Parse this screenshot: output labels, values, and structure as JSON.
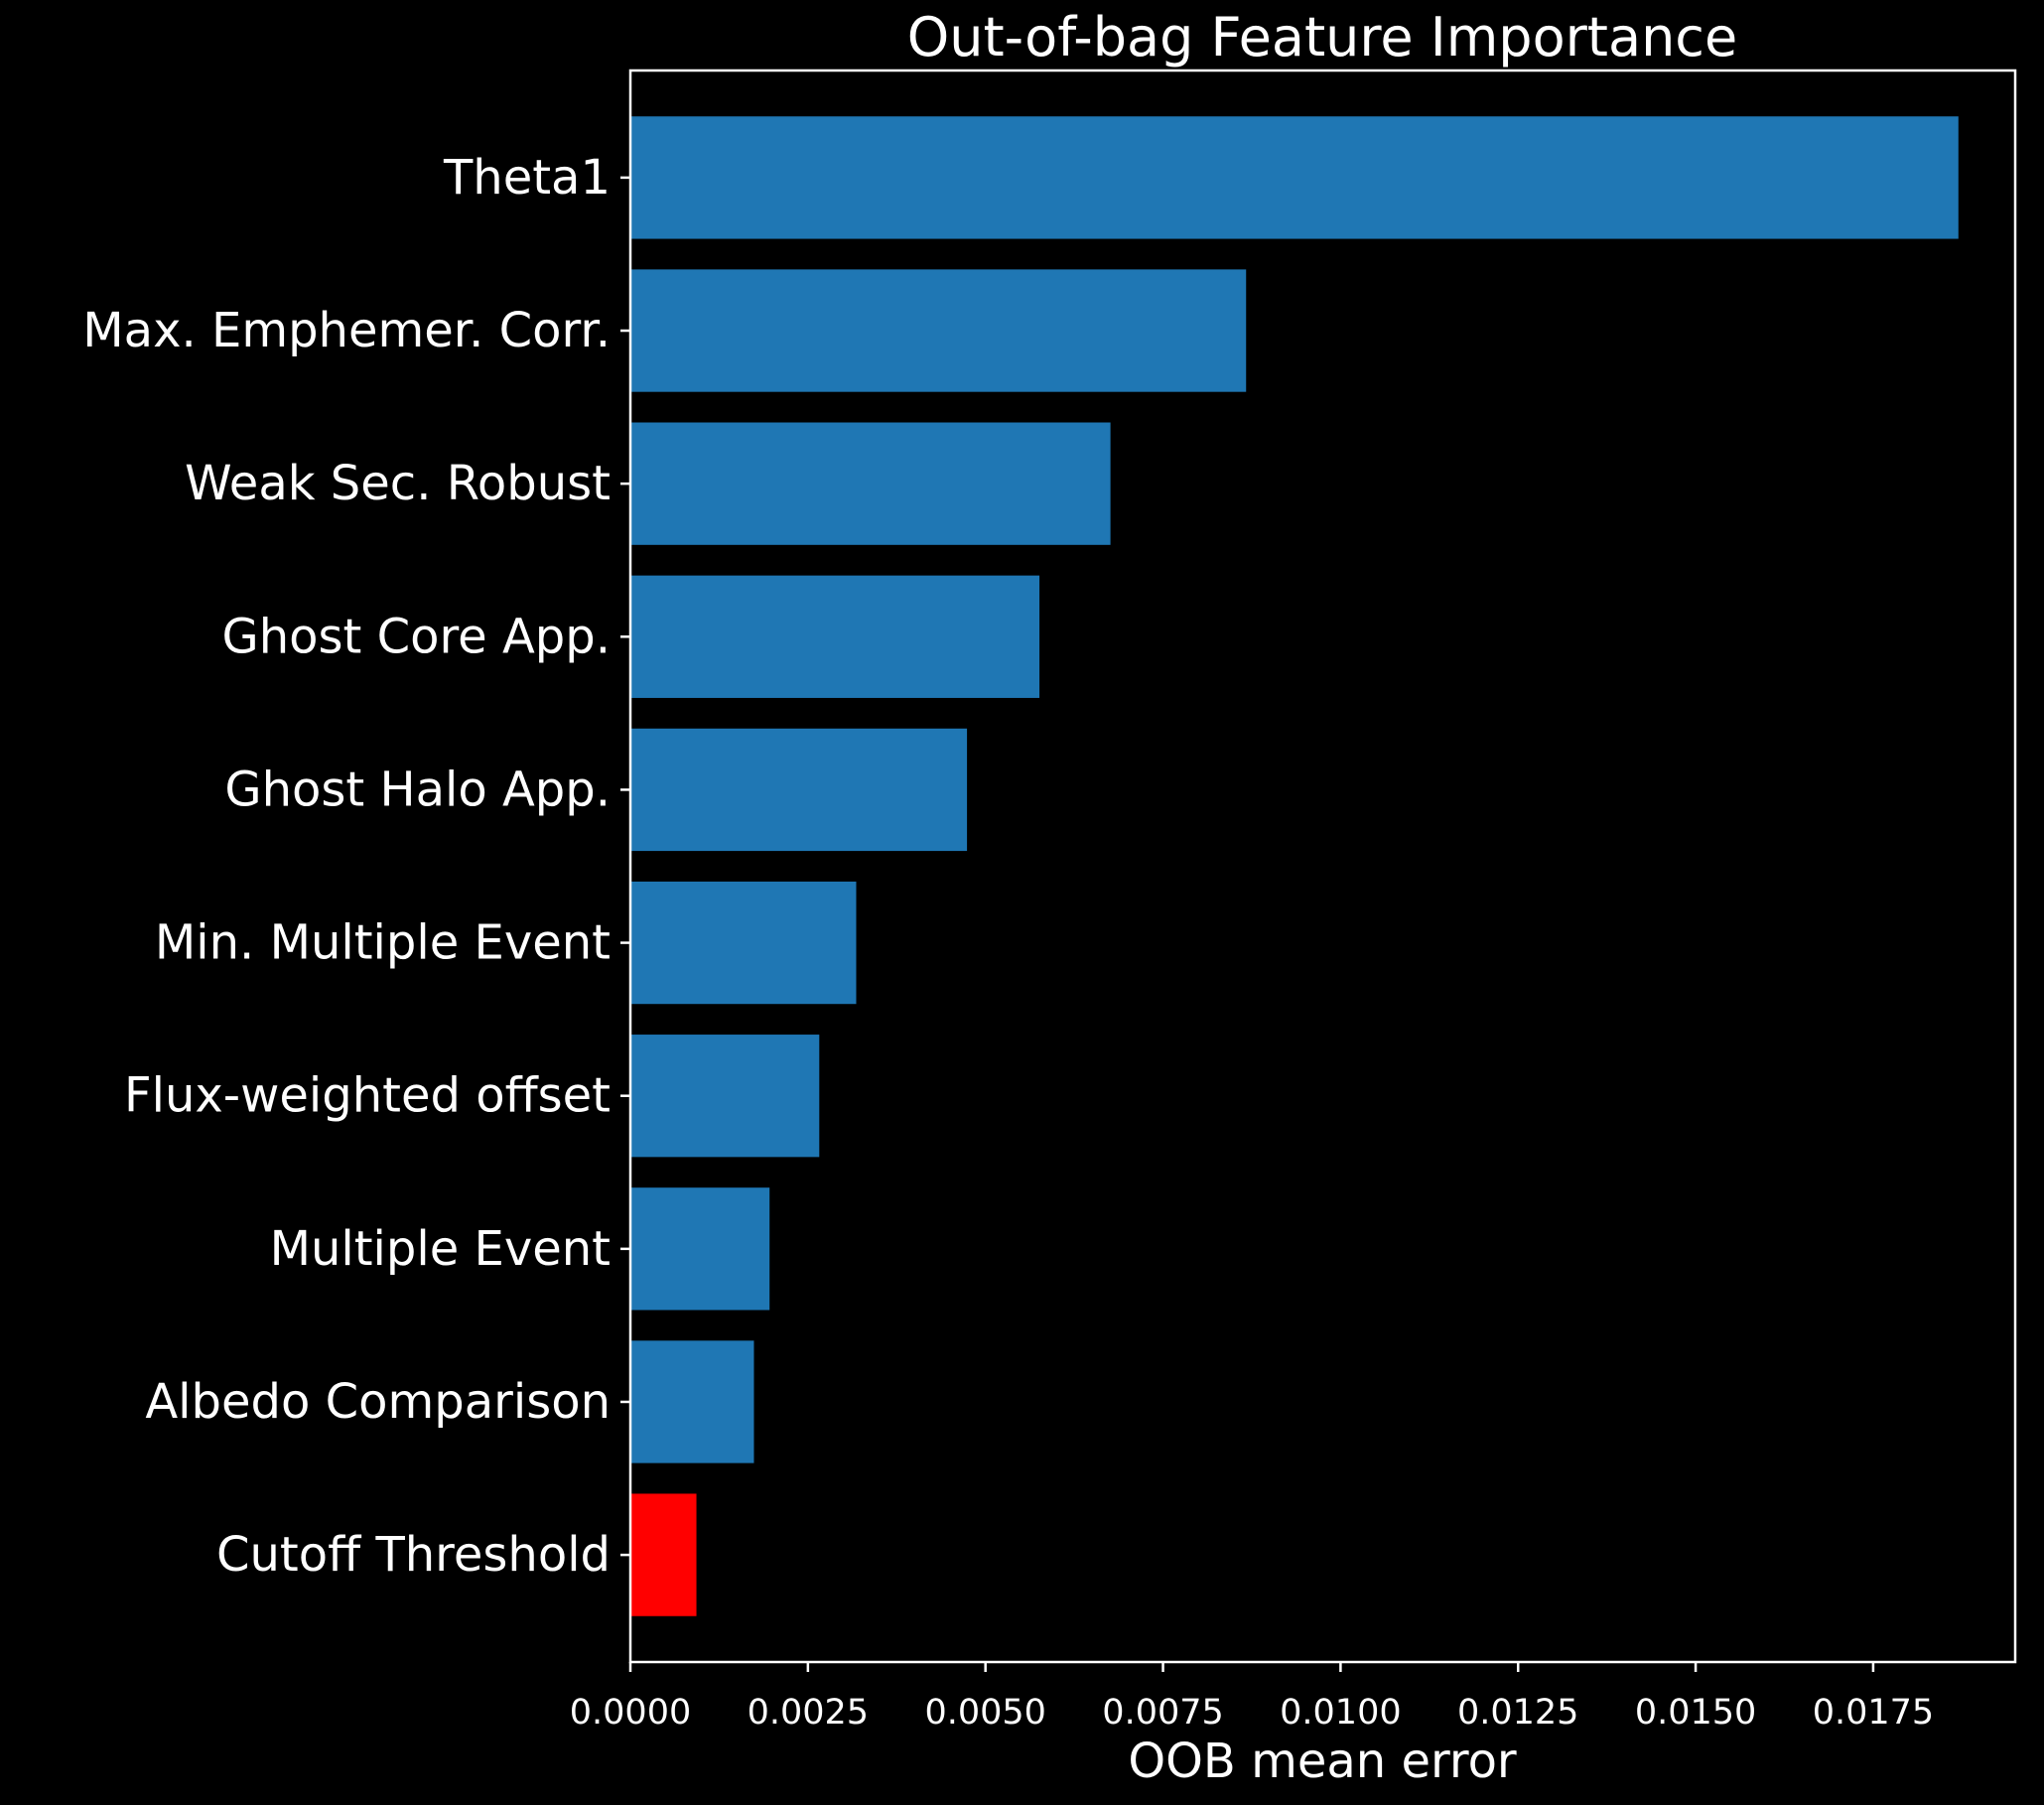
{
  "chart_data": {
    "type": "bar",
    "orientation": "horizontal",
    "title": "Out-of-bag Feature Importance",
    "xlabel": "OOB mean error",
    "ylabel": "",
    "xlim": [
      0,
      0.0195
    ],
    "x_ticks": [
      0.0,
      0.0025,
      0.005,
      0.0075,
      0.01,
      0.0125,
      0.015,
      0.0175
    ],
    "x_tick_labels": [
      "0.0000",
      "0.0025",
      "0.0050",
      "0.0075",
      "0.0100",
      "0.0125",
      "0.0150",
      "0.0175"
    ],
    "categories": [
      "Theta1",
      "Max. Emphemer. Corr.",
      "Weak Sec. Robust",
      "Ghost Core App.",
      "Ghost Halo App.",
      "Min. Multiple Event",
      "Flux-weighted offset",
      "Multiple Event",
      "Albedo Comparison",
      "Cutoff Threshold"
    ],
    "values": [
      0.0187,
      0.00867,
      0.00676,
      0.00576,
      0.00474,
      0.00318,
      0.00266,
      0.00196,
      0.00174,
      0.00093
    ],
    "bar_colors": [
      "#1f77b4",
      "#1f77b4",
      "#1f77b4",
      "#1f77b4",
      "#1f77b4",
      "#1f77b4",
      "#1f77b4",
      "#1f77b4",
      "#1f77b4",
      "#ff0000"
    ],
    "background": "#000000",
    "foreground": "#ffffff",
    "grid": false
  }
}
